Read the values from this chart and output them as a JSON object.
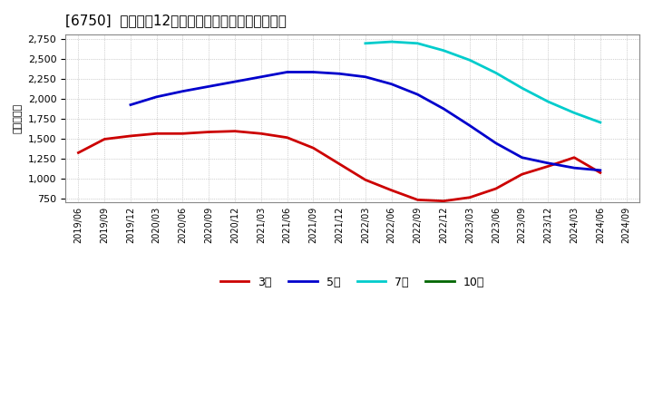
{
  "title": "[6750]  経常利益12か月移動合計の標準偏差の推移",
  "ylabel": "（百万円）",
  "background_color": "#ffffff",
  "grid_color": "#aaaaaa",
  "ylim": [
    700,
    2800
  ],
  "yticks": [
    750,
    1000,
    1250,
    1500,
    1750,
    2000,
    2250,
    2500,
    2750
  ],
  "xtick_labels": [
    "2019/06",
    "2019/09",
    "2019/12",
    "2020/03",
    "2020/06",
    "2020/09",
    "2020/12",
    "2021/03",
    "2021/06",
    "2021/09",
    "2021/12",
    "2022/03",
    "2022/06",
    "2022/09",
    "2022/12",
    "2023/03",
    "2023/06",
    "2023/09",
    "2023/12",
    "2024/03",
    "2024/06",
    "2024/09"
  ],
  "series": [
    {
      "key": "3year",
      "color": "#cc0000",
      "label": "3年",
      "dates": [
        "2019/06",
        "2019/09",
        "2019/12",
        "2020/03",
        "2020/06",
        "2020/09",
        "2020/12",
        "2021/03",
        "2021/06",
        "2021/09",
        "2021/12",
        "2022/03",
        "2022/06",
        "2022/09",
        "2022/12",
        "2023/03",
        "2023/06",
        "2023/09",
        "2023/12",
        "2024/03",
        "2024/06"
      ],
      "values": [
        1320,
        1490,
        1530,
        1560,
        1560,
        1580,
        1590,
        1560,
        1510,
        1380,
        1180,
        980,
        850,
        730,
        715,
        760,
        870,
        1050,
        1150,
        1260,
        1070
      ]
    },
    {
      "key": "5year",
      "color": "#0000cc",
      "label": "5年",
      "dates": [
        "2019/12",
        "2020/03",
        "2020/06",
        "2020/09",
        "2020/12",
        "2021/03",
        "2021/06",
        "2021/09",
        "2021/12",
        "2022/03",
        "2022/06",
        "2022/09",
        "2022/12",
        "2023/03",
        "2023/06",
        "2023/09",
        "2023/12",
        "2024/03",
        "2024/06"
      ],
      "values": [
        1920,
        2020,
        2090,
        2150,
        2210,
        2270,
        2330,
        2330,
        2310,
        2270,
        2180,
        2050,
        1870,
        1660,
        1440,
        1260,
        1190,
        1130,
        1100
      ]
    },
    {
      "key": "7year",
      "color": "#00cccc",
      "label": "7年",
      "dates": [
        "2022/03",
        "2022/06",
        "2022/09",
        "2022/12",
        "2023/03",
        "2023/06",
        "2023/09",
        "2023/12",
        "2024/03",
        "2024/06"
      ],
      "values": [
        2690,
        2710,
        2690,
        2600,
        2480,
        2320,
        2130,
        1960,
        1820,
        1700
      ]
    },
    {
      "key": "10year",
      "color": "#006600",
      "label": "10年",
      "dates": [],
      "values": []
    }
  ]
}
